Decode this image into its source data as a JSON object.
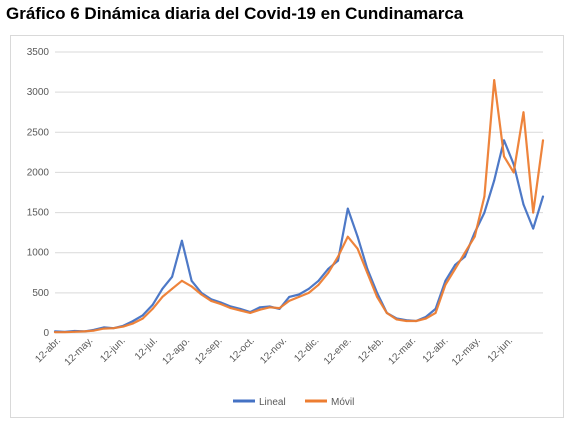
{
  "title": "Gráfico 6 Dinámica diaria del Covid-19 en Cundinamarca",
  "colors": {
    "lineal": "#4472c4",
    "movil": "#ed7d31",
    "grid": "#d9d9d9",
    "text": "#595959"
  },
  "chart_data": {
    "type": "line",
    "title": "Gráfico 6 Dinámica diaria del Covid-19 en Cundinamarca",
    "xlabel": "",
    "ylabel": "",
    "ylim": [
      0,
      3500
    ],
    "yticks": [
      0,
      500,
      1000,
      1500,
      2000,
      2500,
      3000,
      3500
    ],
    "x_tick_labels": [
      "12-abr.",
      "12-may.",
      "12-jun.",
      "12-jul.",
      "12-ago.",
      "12-sep.",
      "12-oct.",
      "12-nov.",
      "12-dic.",
      "12-ene.",
      "12-feb.",
      "12-mar.",
      "12-abr.",
      "12-may.",
      "12-jun."
    ],
    "grid": "horizontal",
    "legend": "bottom",
    "x": [
      "12-abr.",
      "22-abr.",
      "2-may.",
      "12-may.",
      "22-may.",
      "1-jun.",
      "12-jun.",
      "22-jun.",
      "2-jul.",
      "12-jul.",
      "22-jul.",
      "1-ago.",
      "7-ago.",
      "12-ago.",
      "17-ago.",
      "22-ago.",
      "1-sep.",
      "12-sep.",
      "22-sep.",
      "2-oct.",
      "12-oct.",
      "22-oct.",
      "1-nov.",
      "12-nov.",
      "22-nov.",
      "2-dic.",
      "12-dic.",
      "22-dic.",
      "1-ene.",
      "7-ene.",
      "12-ene.",
      "17-ene.",
      "22-ene.",
      "1-feb.",
      "12-feb.",
      "22-feb.",
      "2-mar.",
      "12-mar.",
      "22-mar.",
      "1-abr.",
      "12-abr.",
      "22-abr.",
      "1-may.",
      "12-may.",
      "17-may.",
      "22-may.",
      "1-jun.",
      "7-jun.",
      "12-jun.",
      "17-jun.",
      "22-jun."
    ],
    "series": [
      {
        "name": "Lineal",
        "color": "#4472c4",
        "values": [
          20,
          15,
          25,
          20,
          40,
          70,
          60,
          90,
          150,
          220,
          350,
          550,
          700,
          1150,
          650,
          500,
          420,
          380,
          330,
          300,
          260,
          320,
          330,
          300,
          450,
          480,
          550,
          650,
          800,
          900,
          1550,
          1200,
          800,
          500,
          250,
          180,
          160,
          150,
          200,
          300,
          650,
          850,
          950,
          1250,
          1500,
          1900,
          2400,
          2100,
          1600,
          1300,
          1700
        ]
      },
      {
        "name": "Móvil",
        "color": "#ed7d31",
        "values": [
          10,
          10,
          15,
          20,
          30,
          55,
          60,
          80,
          120,
          180,
          300,
          450,
          550,
          650,
          580,
          480,
          400,
          360,
          310,
          280,
          250,
          290,
          320,
          310,
          400,
          450,
          500,
          600,
          750,
          950,
          1200,
          1050,
          750,
          450,
          250,
          170,
          150,
          150,
          180,
          250,
          600,
          800,
          1000,
          1200,
          1700,
          3150,
          2200,
          2000,
          2750,
          1500,
          2400
        ]
      }
    ]
  }
}
